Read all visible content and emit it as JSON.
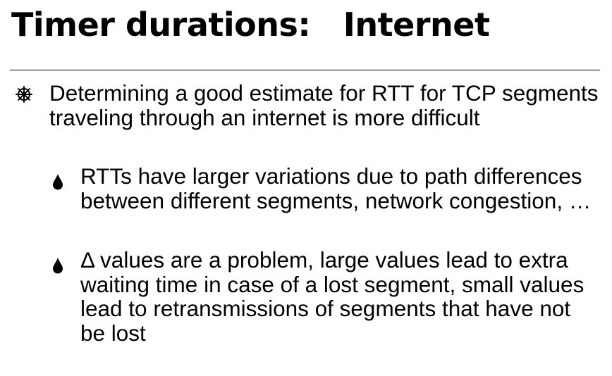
{
  "slide": {
    "title": "Timer durations:   Internet",
    "bullets": [
      {
        "icon": "wheel-bullet-icon",
        "text": "Determining a good estimate for RTT for TCP segments traveling through an internet is more difficult",
        "sub_bullets": [
          {
            "icon": "drop-bullet-icon",
            "text": "RTTs have larger variations due to path differences between different segments, network congestion, …"
          },
          {
            "icon": "drop-bullet-icon",
            "text": "Δ values are a problem, large values lead to extra waiting time in case of a lost segment, small values lead to retransmissions of segments that have not be lost"
          }
        ]
      }
    ]
  }
}
